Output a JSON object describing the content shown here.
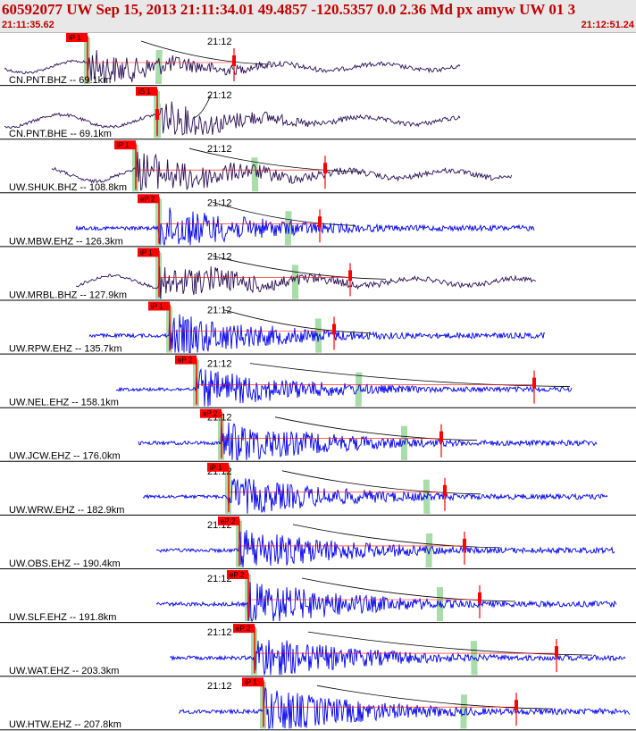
{
  "header": {
    "title": "60592077 UW Sep 15, 2013 21:11:34.01   49.4857 -120.5357  0.0 2.36 Md px amyw UW 01   3",
    "start_time": "21:11:35.62",
    "end_time": "21:12:51.24"
  },
  "colors": {
    "header_bg": "#e8e8e8",
    "time_text": "#c00000",
    "broadband_trace": "#2a0f55",
    "short_period_trace": "#0000ee",
    "pick_marker": "#ff0000",
    "phase_window": "#a8dca8",
    "arrival_curve": "#000000"
  },
  "minute_label": "21:12",
  "traces": [
    {
      "label": "CN.PNT.BHZ -- 69.1km",
      "pick": "iP 1",
      "type": "broadband"
    },
    {
      "label": "CN.PNT.BHE -- 69.1km",
      "pick": "iS 1",
      "type": "broadband"
    },
    {
      "label": "UW.SHUK.BHZ -- 108.8km",
      "pick": "iP 1",
      "type": "broadband"
    },
    {
      "label": "UW.MBW.EHZ -- 126.3km",
      "pick": "eP 2",
      "type": "short_period"
    },
    {
      "label": "UW.MRBL.BHZ -- 127.9km",
      "pick": "iP 1",
      "type": "broadband"
    },
    {
      "label": "UW.RPW.EHZ -- 135.7km",
      "pick": "iP 1",
      "type": "short_period"
    },
    {
      "label": "UW.NEL.EHZ -- 158.1km",
      "pick": "eP 2",
      "type": "short_period"
    },
    {
      "label": "UW.JCW.EHZ -- 176.0km",
      "pick": "eP 2",
      "type": "short_period"
    },
    {
      "label": "UW.WRW.EHZ -- 182.9km",
      "pick": "iP 1",
      "type": "short_period"
    },
    {
      "label": "UW.OBS.EHZ -- 190.4km",
      "pick": "eP 2",
      "type": "short_period"
    },
    {
      "label": "UW.SLF.EHZ -- 191.8km",
      "pick": "eP 2",
      "type": "short_period"
    },
    {
      "label": "UW.WAT.EHZ -- 203.3km",
      "pick": "eP 2",
      "type": "short_period"
    },
    {
      "label": "UW.HTW.EHZ -- 207.8km",
      "pick": "iP 1",
      "type": "short_period"
    }
  ]
}
